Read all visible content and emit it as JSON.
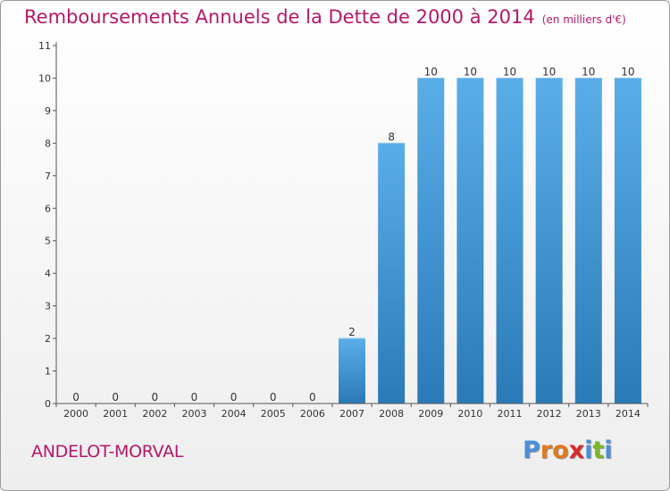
{
  "chart_data": {
    "type": "bar",
    "title": "Remboursements Annuels de la Dette de 2000 à 2014",
    "subtitle": "(en milliers d'€)",
    "categories": [
      "2000",
      "2001",
      "2002",
      "2003",
      "2004",
      "2005",
      "2006",
      "2007",
      "2008",
      "2009",
      "2010",
      "2011",
      "2012",
      "2013",
      "2014"
    ],
    "values": [
      0,
      0,
      0,
      0,
      0,
      0,
      0,
      2,
      8,
      10,
      10,
      10,
      10,
      10,
      10
    ],
    "data_labels": [
      "0",
      "0",
      "0",
      "0",
      "0",
      "0",
      "0",
      "2",
      "8",
      "10",
      "10",
      "10",
      "10",
      "10",
      "10"
    ],
    "ylim": [
      0,
      11
    ],
    "yticks": [
      "0",
      "1",
      "2",
      "3",
      "4",
      "5",
      "6",
      "7",
      "8",
      "9",
      "10",
      "11"
    ],
    "xlabel": "",
    "ylabel": "",
    "grid": false,
    "bar_color": "#2f86c8"
  },
  "footer": {
    "commune": "ANDELOT-MORVAL",
    "logo_letters": [
      {
        "ch": "P",
        "color": "#4a90d9"
      },
      {
        "ch": "r",
        "color": "#e07a1f"
      },
      {
        "ch": "o",
        "color": "#e07a1f"
      },
      {
        "ch": "x",
        "color": "#d9282a"
      },
      {
        "ch": "i",
        "color": "#4a90d9"
      },
      {
        "ch": "t",
        "color": "#7ab829"
      },
      {
        "ch": "i",
        "color": "#4a90d9"
      }
    ]
  }
}
